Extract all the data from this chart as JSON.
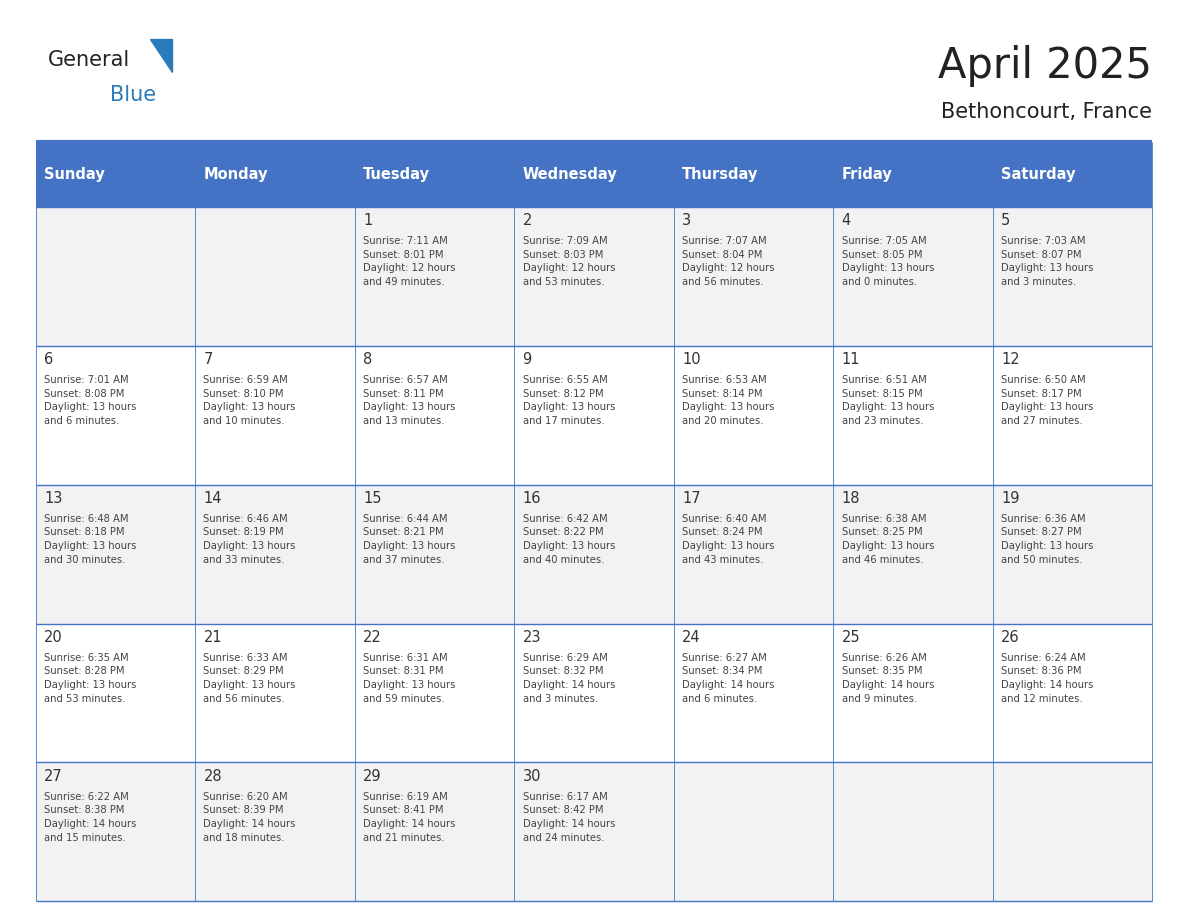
{
  "title": "April 2025",
  "subtitle": "Bethoncourt, France",
  "header_bg": "#4472C4",
  "header_text_color": "#FFFFFF",
  "row_bg_even": "#F2F2F2",
  "row_bg_odd": "#FFFFFF",
  "day_names": [
    "Sunday",
    "Monday",
    "Tuesday",
    "Wednesday",
    "Thursday",
    "Friday",
    "Saturday"
  ],
  "title_color": "#222222",
  "day_number_color": "#333333",
  "cell_text_color": "#444444",
  "line_color": "#4472C4",
  "logo_general_color": "#222222",
  "logo_blue_color": "#2B7BBB",
  "weeks": [
    [
      {
        "day": null,
        "text": ""
      },
      {
        "day": null,
        "text": ""
      },
      {
        "day": 1,
        "text": "Sunrise: 7:11 AM\nSunset: 8:01 PM\nDaylight: 12 hours\nand 49 minutes."
      },
      {
        "day": 2,
        "text": "Sunrise: 7:09 AM\nSunset: 8:03 PM\nDaylight: 12 hours\nand 53 minutes."
      },
      {
        "day": 3,
        "text": "Sunrise: 7:07 AM\nSunset: 8:04 PM\nDaylight: 12 hours\nand 56 minutes."
      },
      {
        "day": 4,
        "text": "Sunrise: 7:05 AM\nSunset: 8:05 PM\nDaylight: 13 hours\nand 0 minutes."
      },
      {
        "day": 5,
        "text": "Sunrise: 7:03 AM\nSunset: 8:07 PM\nDaylight: 13 hours\nand 3 minutes."
      }
    ],
    [
      {
        "day": 6,
        "text": "Sunrise: 7:01 AM\nSunset: 8:08 PM\nDaylight: 13 hours\nand 6 minutes."
      },
      {
        "day": 7,
        "text": "Sunrise: 6:59 AM\nSunset: 8:10 PM\nDaylight: 13 hours\nand 10 minutes."
      },
      {
        "day": 8,
        "text": "Sunrise: 6:57 AM\nSunset: 8:11 PM\nDaylight: 13 hours\nand 13 minutes."
      },
      {
        "day": 9,
        "text": "Sunrise: 6:55 AM\nSunset: 8:12 PM\nDaylight: 13 hours\nand 17 minutes."
      },
      {
        "day": 10,
        "text": "Sunrise: 6:53 AM\nSunset: 8:14 PM\nDaylight: 13 hours\nand 20 minutes."
      },
      {
        "day": 11,
        "text": "Sunrise: 6:51 AM\nSunset: 8:15 PM\nDaylight: 13 hours\nand 23 minutes."
      },
      {
        "day": 12,
        "text": "Sunrise: 6:50 AM\nSunset: 8:17 PM\nDaylight: 13 hours\nand 27 minutes."
      }
    ],
    [
      {
        "day": 13,
        "text": "Sunrise: 6:48 AM\nSunset: 8:18 PM\nDaylight: 13 hours\nand 30 minutes."
      },
      {
        "day": 14,
        "text": "Sunrise: 6:46 AM\nSunset: 8:19 PM\nDaylight: 13 hours\nand 33 minutes."
      },
      {
        "day": 15,
        "text": "Sunrise: 6:44 AM\nSunset: 8:21 PM\nDaylight: 13 hours\nand 37 minutes."
      },
      {
        "day": 16,
        "text": "Sunrise: 6:42 AM\nSunset: 8:22 PM\nDaylight: 13 hours\nand 40 minutes."
      },
      {
        "day": 17,
        "text": "Sunrise: 6:40 AM\nSunset: 8:24 PM\nDaylight: 13 hours\nand 43 minutes."
      },
      {
        "day": 18,
        "text": "Sunrise: 6:38 AM\nSunset: 8:25 PM\nDaylight: 13 hours\nand 46 minutes."
      },
      {
        "day": 19,
        "text": "Sunrise: 6:36 AM\nSunset: 8:27 PM\nDaylight: 13 hours\nand 50 minutes."
      }
    ],
    [
      {
        "day": 20,
        "text": "Sunrise: 6:35 AM\nSunset: 8:28 PM\nDaylight: 13 hours\nand 53 minutes."
      },
      {
        "day": 21,
        "text": "Sunrise: 6:33 AM\nSunset: 8:29 PM\nDaylight: 13 hours\nand 56 minutes."
      },
      {
        "day": 22,
        "text": "Sunrise: 6:31 AM\nSunset: 8:31 PM\nDaylight: 13 hours\nand 59 minutes."
      },
      {
        "day": 23,
        "text": "Sunrise: 6:29 AM\nSunset: 8:32 PM\nDaylight: 14 hours\nand 3 minutes."
      },
      {
        "day": 24,
        "text": "Sunrise: 6:27 AM\nSunset: 8:34 PM\nDaylight: 14 hours\nand 6 minutes."
      },
      {
        "day": 25,
        "text": "Sunrise: 6:26 AM\nSunset: 8:35 PM\nDaylight: 14 hours\nand 9 minutes."
      },
      {
        "day": 26,
        "text": "Sunrise: 6:24 AM\nSunset: 8:36 PM\nDaylight: 14 hours\nand 12 minutes."
      }
    ],
    [
      {
        "day": 27,
        "text": "Sunrise: 6:22 AM\nSunset: 8:38 PM\nDaylight: 14 hours\nand 15 minutes."
      },
      {
        "day": 28,
        "text": "Sunrise: 6:20 AM\nSunset: 8:39 PM\nDaylight: 14 hours\nand 18 minutes."
      },
      {
        "day": 29,
        "text": "Sunrise: 6:19 AM\nSunset: 8:41 PM\nDaylight: 14 hours\nand 21 minutes."
      },
      {
        "day": 30,
        "text": "Sunrise: 6:17 AM\nSunset: 8:42 PM\nDaylight: 14 hours\nand 24 minutes."
      },
      {
        "day": null,
        "text": ""
      },
      {
        "day": null,
        "text": ""
      },
      {
        "day": null,
        "text": ""
      }
    ]
  ]
}
